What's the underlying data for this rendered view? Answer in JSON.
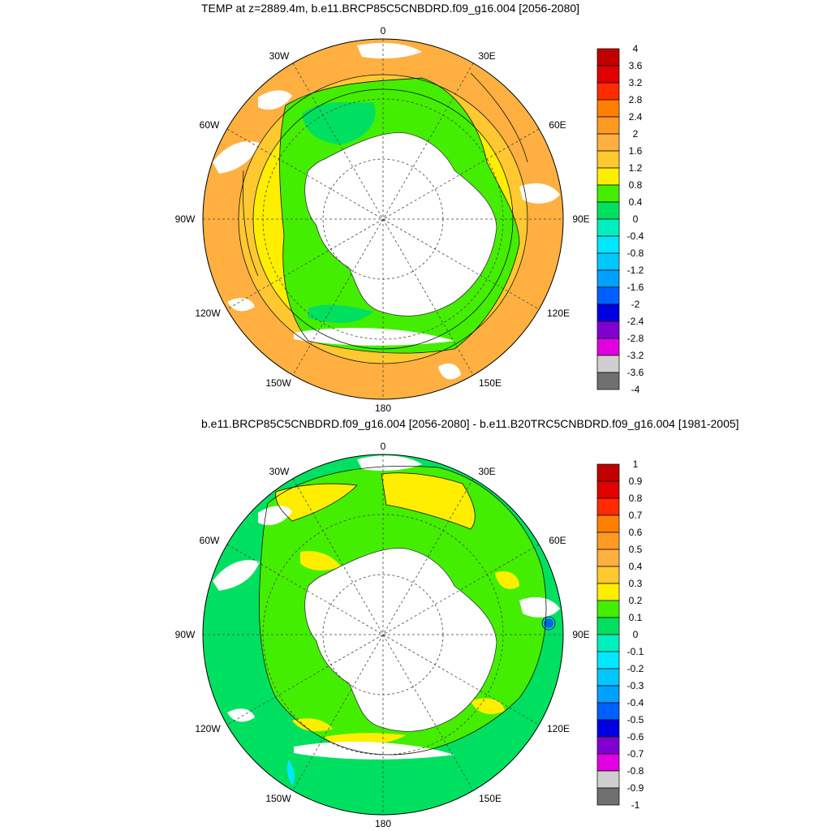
{
  "panel1": {
    "title": "TEMP at z=2889.4m, b.e11.BRCP85C5CNBDRD.f09_g16.004 [2056-2080]",
    "colorbar": {
      "labels": [
        "4",
        "3.6",
        "3.2",
        "2.8",
        "2.4",
        "2",
        "1.6",
        "1.2",
        "0.8",
        "0.4",
        "0",
        "-0.4",
        "-0.8",
        "-1.2",
        "-1.6",
        "-2",
        "-2.4",
        "-2.8",
        "-3.2",
        "-3.6",
        "-4"
      ],
      "colors": [
        "#c00000",
        "#e00000",
        "#ff2a00",
        "#ff8000",
        "#ff9a20",
        "#ffb040",
        "#ffc830",
        "#ffee00",
        "#44ee00",
        "#00e060",
        "#00f0c0",
        "#00e8ff",
        "#00c8ff",
        "#00a0ff",
        "#0060ff",
        "#0000e0",
        "#8000d0",
        "#e000e0",
        "#cfcfcf",
        "#707070"
      ]
    }
  },
  "panel2": {
    "title": "b.e11.BRCP85C5CNBDRD.f09_g16.004 [2056-2080] - b.e11.B20TRC5CNBDRD.f09_g16.004 [1981-2005]",
    "colorbar": {
      "labels": [
        "1",
        "0.9",
        "0.8",
        "0.7",
        "0.6",
        "0.5",
        "0.4",
        "0.3",
        "0.2",
        "0.1",
        "0",
        "-0.1",
        "-0.2",
        "-0.3",
        "-0.4",
        "-0.5",
        "-0.6",
        "-0.7",
        "-0.8",
        "-0.9",
        "-1"
      ],
      "colors": [
        "#c00000",
        "#e00000",
        "#ff2a00",
        "#ff8000",
        "#ff9a20",
        "#ffb040",
        "#ffc830",
        "#ffee00",
        "#44ee00",
        "#00e060",
        "#00f0c0",
        "#00e8ff",
        "#00c8ff",
        "#00a0ff",
        "#0060ff",
        "#0000e0",
        "#8000d0",
        "#e000e0",
        "#cfcfcf",
        "#707070"
      ]
    }
  },
  "lon_labels": {
    "n0": "0",
    "e30": "30E",
    "e60": "60E",
    "e90": "90E",
    "e120": "120E",
    "e150": "150E",
    "s180": "180",
    "w150": "150W",
    "w120": "120W",
    "w90": "90W",
    "w60": "60W",
    "w30": "30W"
  }
}
